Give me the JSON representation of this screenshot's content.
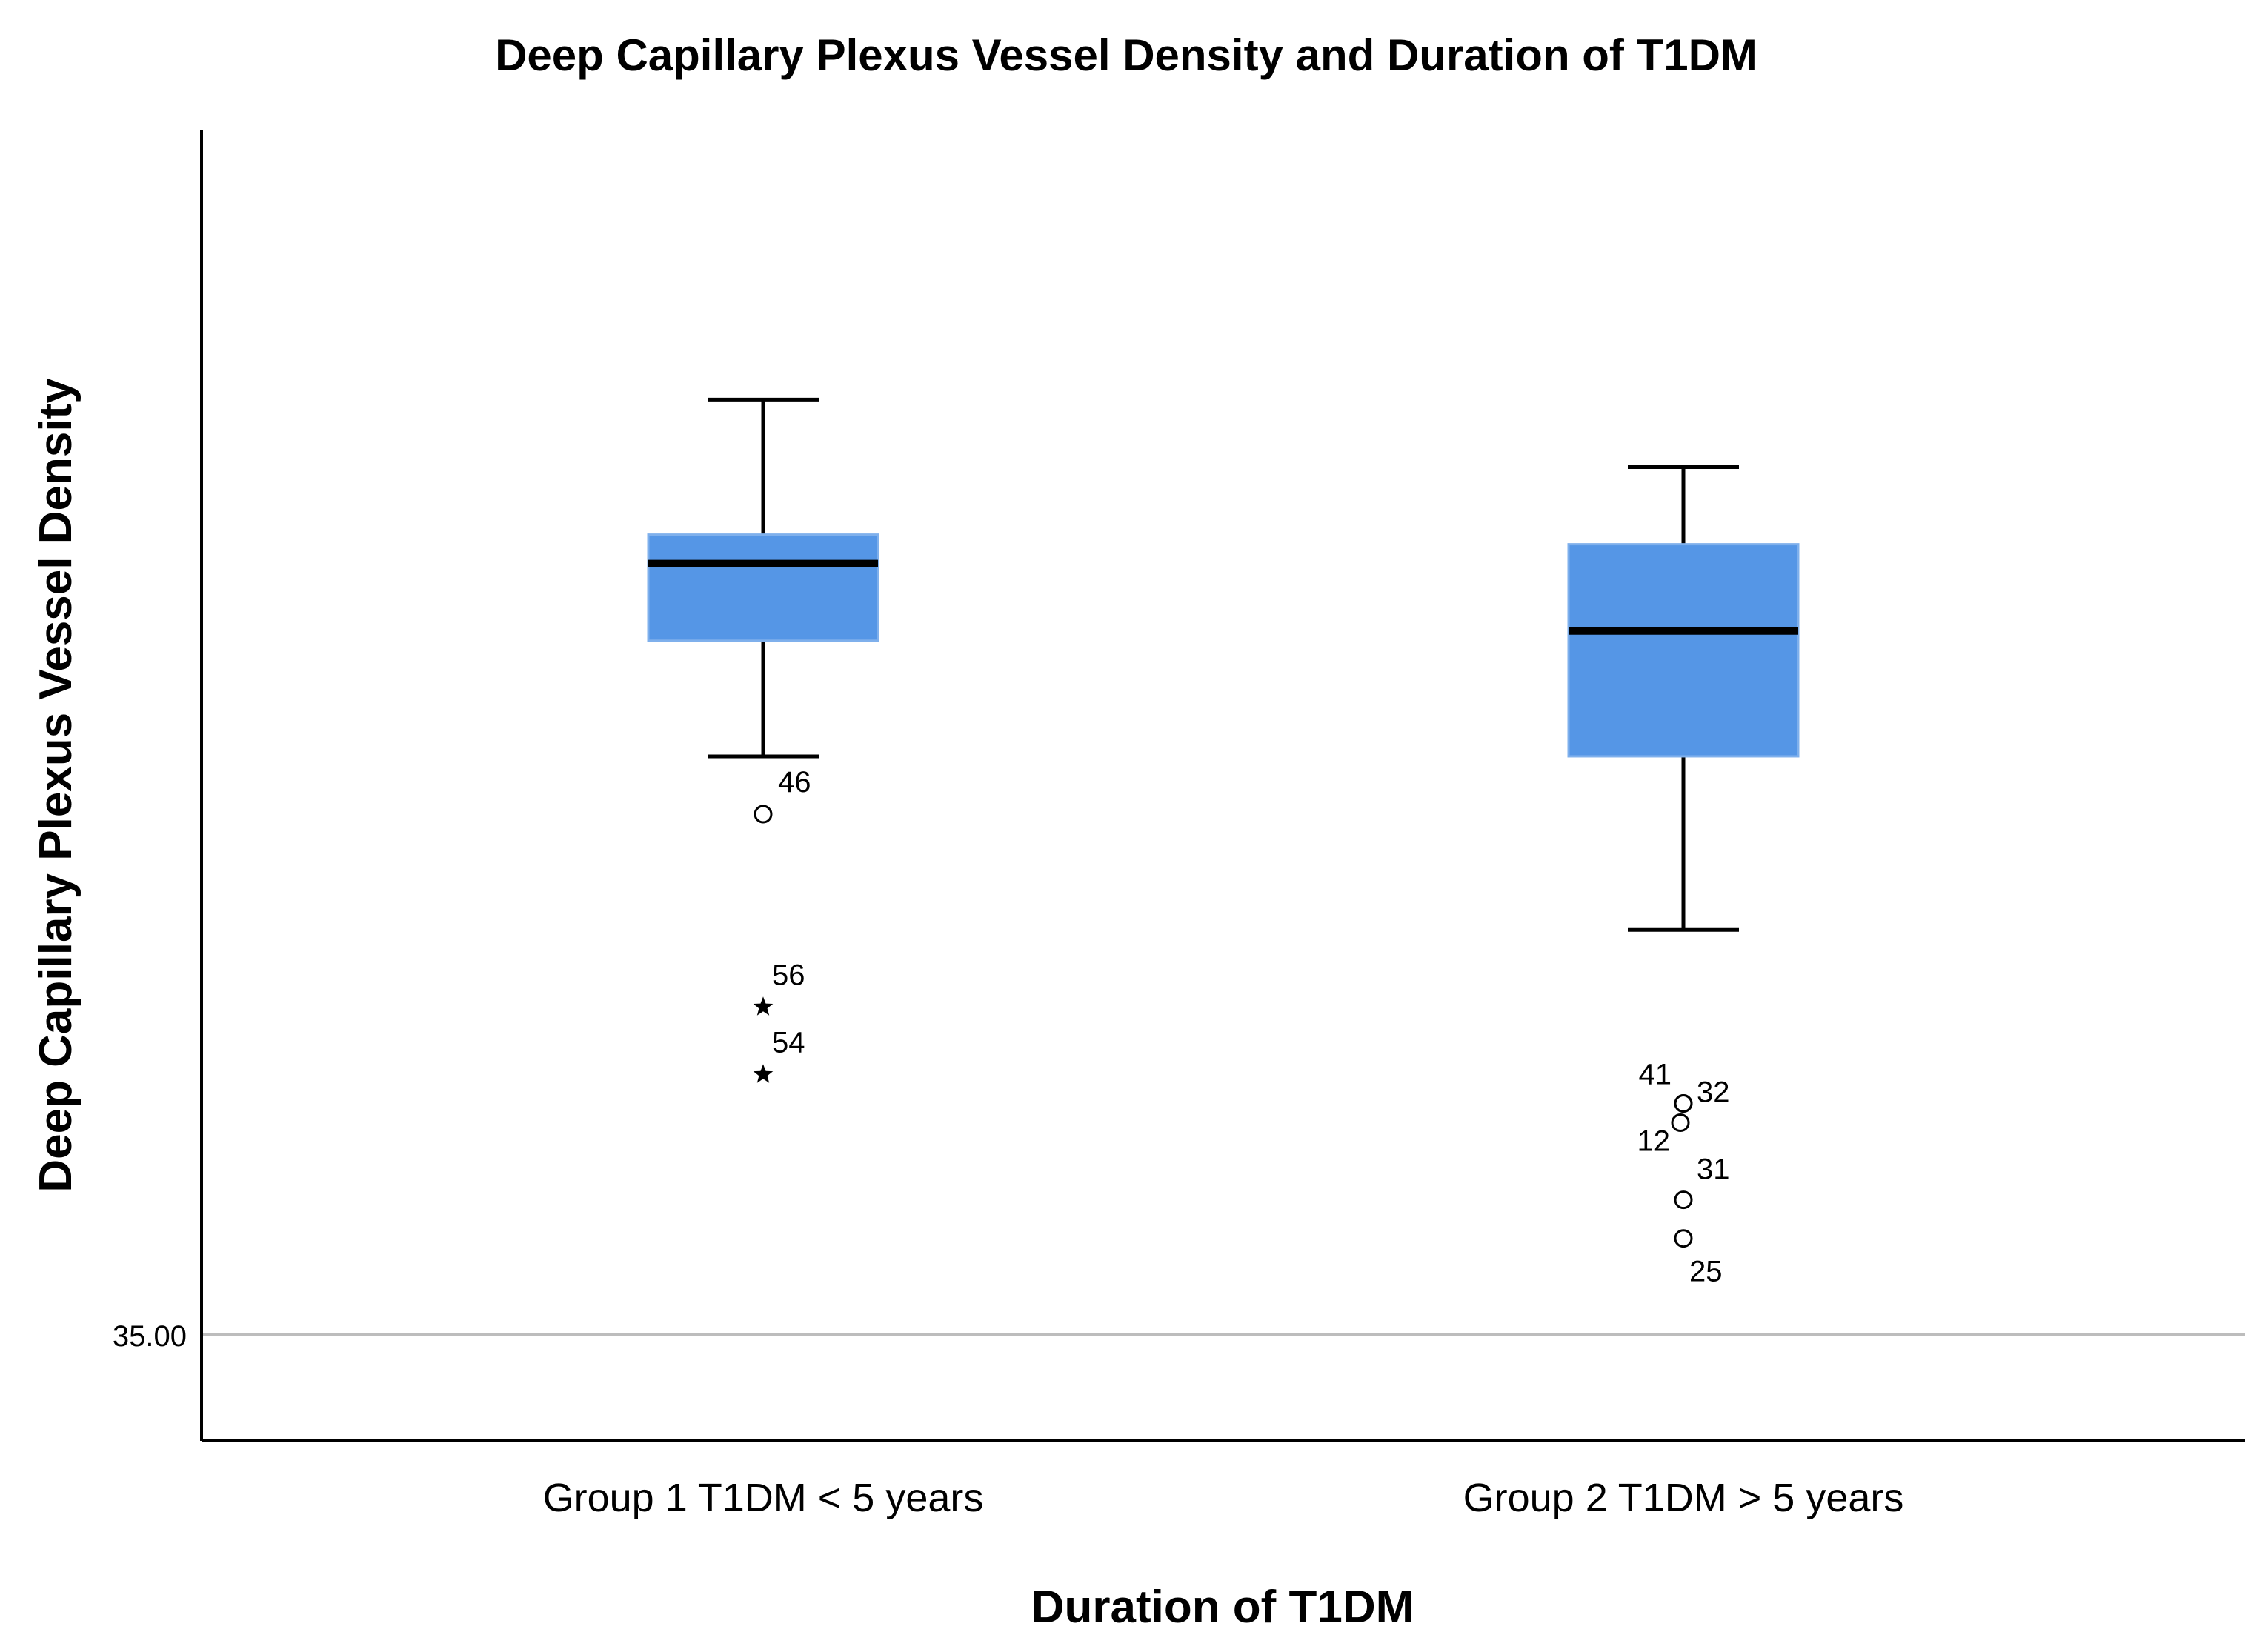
{
  "chart_data": {
    "type": "boxplot",
    "title": "Deep Capillary Plexus Vessel Density and Duration of T1DM",
    "xlabel": "Duration of T1DM",
    "ylabel": "Deep Capillary Plexus Vessel Density",
    "y_ticks": [
      {
        "value": 35.0,
        "label": "35.00"
      }
    ],
    "ylim": [
      33.9,
      47.5
    ],
    "grid": "single reference line at 35.00",
    "box_color": "#5596e6",
    "median_color": "#000000",
    "categories": [
      "Group 1 T1DM < 5 years",
      "Group 2 T1DM > 5 years"
    ],
    "boxes": [
      {
        "category": "Group 1 T1DM < 5 years",
        "whisker_low": 41.0,
        "q1": 42.2,
        "median": 43.0,
        "q3": 43.3,
        "whisker_high": 44.7,
        "outliers": [
          {
            "label": "46",
            "value": 40.4,
            "marker": "circle"
          },
          {
            "label": "56",
            "value": 38.4,
            "marker": "star"
          },
          {
            "label": "54",
            "value": 37.7,
            "marker": "star"
          }
        ]
      },
      {
        "category": "Group 2 T1DM > 5 years",
        "whisker_low": 39.2,
        "q1": 41.0,
        "median": 42.3,
        "q3": 43.2,
        "whisker_high": 44.0,
        "outliers": [
          {
            "label": "41",
            "value": 37.4,
            "marker": "circle"
          },
          {
            "label": "32",
            "value": 37.4,
            "marker": "circle"
          },
          {
            "label": "12",
            "value": 37.2,
            "marker": "circle"
          },
          {
            "label": "31",
            "value": 36.4,
            "marker": "circle"
          },
          {
            "label": "25",
            "value": 36.0,
            "marker": "circle"
          }
        ]
      }
    ]
  }
}
